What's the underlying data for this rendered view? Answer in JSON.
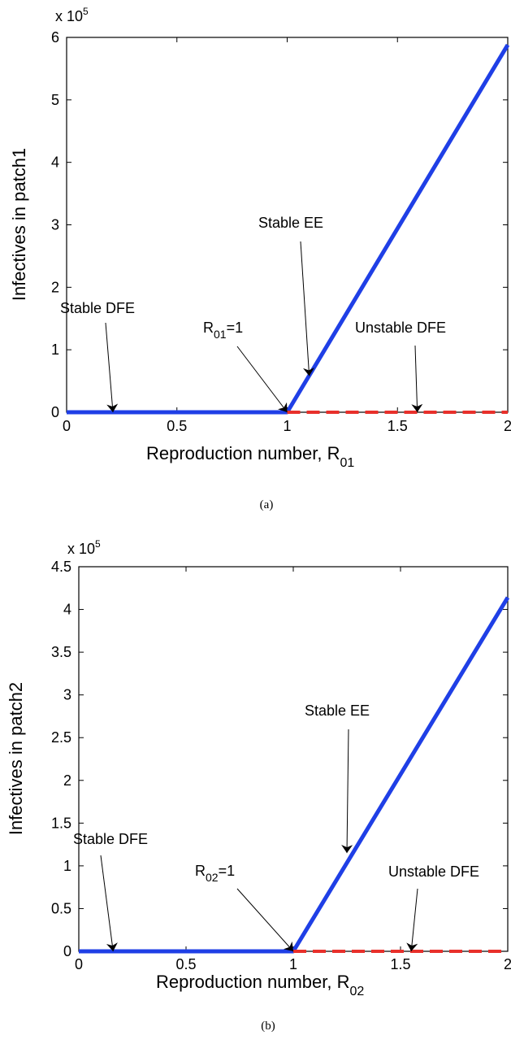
{
  "colors": {
    "stable": "#1f3fe6",
    "unstable": "#e8302b",
    "axes": "#000000"
  },
  "chart_data": [
    {
      "type": "line",
      "caption": "(a)",
      "xlabel": "Reproduction number, R",
      "xlabel_sub": "01",
      "ylabel": "Infectives in patch1",
      "y_exponent_label": "x 10",
      "y_exponent": "5",
      "xlim": [
        0,
        2
      ],
      "ylim": [
        0,
        6
      ],
      "x_ticks": [
        "0",
        "0.5",
        "1",
        "1.5",
        "2"
      ],
      "x_tick_values": [
        0,
        0.5,
        1,
        1.5,
        2
      ],
      "y_ticks": [
        "0",
        "1",
        "2",
        "3",
        "4",
        "5",
        "6"
      ],
      "y_tick_values": [
        0,
        1,
        2,
        3,
        4,
        5,
        6
      ],
      "grid": false,
      "series": [
        {
          "style": "solid-blue",
          "x": [
            0,
            1,
            1,
            2
          ],
          "y": [
            0,
            0,
            0,
            5.88
          ]
        },
        {
          "style": "dashed-red",
          "x": [
            1,
            2
          ],
          "y": [
            0,
            0
          ]
        }
      ],
      "annotations": {
        "stable_dfe": {
          "text": "Stable DFE",
          "point": [
            0.21,
            0
          ]
        },
        "threshold": {
          "text_main": "R",
          "text_sub": "01",
          "text_tail": "=1",
          "point": [
            1,
            0
          ]
        },
        "stable_ee": {
          "text": "Stable EE",
          "point": [
            1.1,
            0.58
          ]
        },
        "unstable_dfe": {
          "text": "Unstable DFE",
          "point": [
            1.59,
            0
          ]
        }
      }
    },
    {
      "type": "line",
      "caption": "(b)",
      "xlabel": "Reproduction number, R",
      "xlabel_sub": "02",
      "ylabel": "Infectives in patch2",
      "y_exponent_label": "x 10",
      "y_exponent": "5",
      "xlim": [
        0,
        2
      ],
      "ylim": [
        0,
        4.5
      ],
      "x_ticks": [
        "0",
        "0.5",
        "1",
        "1.5",
        "2"
      ],
      "x_tick_values": [
        0,
        0.5,
        1,
        1.5,
        2
      ],
      "y_ticks": [
        "0",
        "0.5",
        "1",
        "1.5",
        "2",
        "2.5",
        "3",
        "3.5",
        "4",
        "4.5"
      ],
      "y_tick_values": [
        0,
        0.5,
        1,
        1.5,
        2,
        2.5,
        3,
        3.5,
        4,
        4.5
      ],
      "grid": false,
      "series": [
        {
          "style": "solid-blue",
          "x": [
            0,
            1,
            1,
            2
          ],
          "y": [
            0,
            0,
            0,
            4.14
          ]
        },
        {
          "style": "dashed-red",
          "x": [
            1,
            2
          ],
          "y": [
            0,
            0
          ]
        }
      ],
      "annotations": {
        "stable_dfe": {
          "text": "Stable DFE",
          "point": [
            0.16,
            0
          ]
        },
        "threshold": {
          "text_main": "R",
          "text_sub": "02",
          "text_tail": "=1",
          "point": [
            1,
            0
          ]
        },
        "stable_ee": {
          "text": "Stable EE",
          "point": [
            1.25,
            1.15
          ]
        },
        "unstable_dfe": {
          "text": "Unstable DFE",
          "point": [
            1.55,
            0
          ]
        }
      }
    }
  ]
}
